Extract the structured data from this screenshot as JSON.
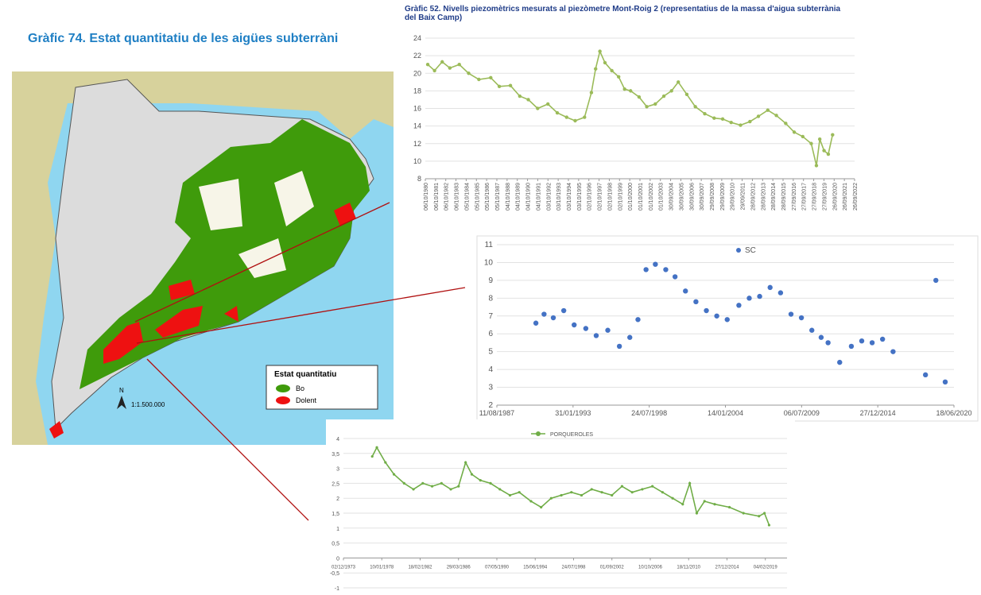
{
  "page_title": "Gràfic 74. Estat quantitatiu de les aigües subterràni",
  "map": {
    "legend_title": "Estat quantitatiu",
    "legend_items": [
      {
        "label": "Bo",
        "color": "#3f9b0b"
      },
      {
        "label": "Dolent",
        "color": "#ee1111"
      }
    ],
    "north": "N",
    "scale": "1:1.500.000"
  },
  "chart_data": [
    {
      "type": "line",
      "title": "Gràfic 52. Nivells piezomètrics mesurats al piezòmetre Mont-Roig 2 (representatius de la massa d'aigua subterrània del Baix Camp)",
      "x": [
        "1981-01",
        "1981-09",
        "1982-06",
        "1983-03",
        "1984-02",
        "1985-01",
        "1986-01",
        "1987-03",
        "1988-01",
        "1989-02",
        "1990-01",
        "1990-11",
        "1991-10",
        "1992-10",
        "1993-09",
        "1994-08",
        "1995-06",
        "1996-05",
        "1997-01",
        "1997-06",
        "1997-11",
        "1998-05",
        "1999-01",
        "1999-09",
        "2000-04",
        "2000-11",
        "2001-09",
        "2002-06",
        "2003-04",
        "2004-02",
        "2004-11",
        "2005-07",
        "2006-05",
        "2007-03",
        "2008-02",
        "2009-01",
        "2009-11",
        "2010-09",
        "2011-08",
        "2012-07",
        "2013-05",
        "2014-04",
        "2015-02",
        "2016-01",
        "2016-11",
        "2017-09",
        "2018-07",
        "2019-01",
        "2019-05",
        "2019-10",
        "2020-03",
        "2020-08"
      ],
      "series": [
        {
          "name": "Mont-Roig 2",
          "color": "#9bbb59",
          "values": [
            21,
            20.3,
            21.3,
            20.6,
            21,
            20,
            19.3,
            19.5,
            18.5,
            18.6,
            17.4,
            17,
            16,
            16.5,
            15.5,
            15,
            14.6,
            15,
            17.8,
            20.5,
            22.5,
            21.2,
            20.3,
            19.6,
            18.2,
            18,
            17.3,
            16.2,
            16.5,
            17.4,
            18,
            19,
            17.6,
            16.2,
            15.4,
            14.9,
            14.8,
            14.4,
            14.1,
            14.5,
            15.1,
            15.8,
            15.2,
            14.3,
            13.3,
            12.8,
            12,
            9.5,
            12.5,
            11.2,
            10.8,
            13
          ]
        }
      ],
      "ylim": [
        8,
        24
      ],
      "yticks": [
        8,
        10,
        12,
        14,
        16,
        18,
        20,
        22,
        24
      ],
      "grid": true,
      "xlim": [
        "1980-10-06",
        "2022-09-26"
      ],
      "xticks": [
        {
          "value": "1980-10-06",
          "label": "06/10/1980"
        },
        {
          "value": "1981-10-06",
          "label": "06/10/1981"
        },
        {
          "value": "1982-10-06",
          "label": "06/10/1982"
        },
        {
          "value": "1983-10-06",
          "label": "06/10/1983"
        },
        {
          "value": "1984-10-05",
          "label": "05/10/1984"
        },
        {
          "value": "1985-10-05",
          "label": "05/10/1985"
        },
        {
          "value": "1986-10-05",
          "label": "05/10/1986"
        },
        {
          "value": "1987-10-05",
          "label": "05/10/1987"
        },
        {
          "value": "1988-10-04",
          "label": "04/10/1988"
        },
        {
          "value": "1989-10-04",
          "label": "04/10/1989"
        },
        {
          "value": "1990-10-04",
          "label": "04/10/1990"
        },
        {
          "value": "1991-10-04",
          "label": "04/10/1991"
        },
        {
          "value": "1992-10-03",
          "label": "03/10/1992"
        },
        {
          "value": "1993-10-03",
          "label": "03/10/1993"
        },
        {
          "value": "1994-10-03",
          "label": "03/10/1994"
        },
        {
          "value": "1995-10-03",
          "label": "03/10/1995"
        },
        {
          "value": "1996-10-02",
          "label": "02/10/1996"
        },
        {
          "value": "1997-10-02",
          "label": "02/10/1997"
        },
        {
          "value": "1998-10-02",
          "label": "02/10/1998"
        },
        {
          "value": "1999-10-02",
          "label": "02/10/1999"
        },
        {
          "value": "2000-10-01",
          "label": "01/10/2000"
        },
        {
          "value": "2001-10-01",
          "label": "01/10/2001"
        },
        {
          "value": "2002-10-01",
          "label": "01/10/2002"
        },
        {
          "value": "2003-10-01",
          "label": "01/10/2003"
        },
        {
          "value": "2004-09-30",
          "label": "30/09/2004"
        },
        {
          "value": "2005-09-30",
          "label": "30/09/2005"
        },
        {
          "value": "2006-09-30",
          "label": "30/09/2006"
        },
        {
          "value": "2007-09-30",
          "label": "30/09/2007"
        },
        {
          "value": "2008-09-29",
          "label": "29/09/2008"
        },
        {
          "value": "2009-09-29",
          "label": "29/09/2009"
        },
        {
          "value": "2010-09-29",
          "label": "29/09/2010"
        },
        {
          "value": "2011-09-29",
          "label": "29/09/2011"
        },
        {
          "value": "2012-09-28",
          "label": "28/09/2012"
        },
        {
          "value": "2013-09-28",
          "label": "28/09/2013"
        },
        {
          "value": "2014-09-28",
          "label": "28/09/2014"
        },
        {
          "value": "2015-09-28",
          "label": "28/09/2015"
        },
        {
          "value": "2016-09-27",
          "label": "27/09/2016"
        },
        {
          "value": "2017-09-27",
          "label": "27/09/2017"
        },
        {
          "value": "2018-09-27",
          "label": "27/09/2018"
        },
        {
          "value": "2019-09-27",
          "label": "27/09/2019"
        },
        {
          "value": "2020-09-26",
          "label": "26/09/2020"
        },
        {
          "value": "2021-09-26",
          "label": "26/09/2021"
        },
        {
          "value": "2022-09-26",
          "label": "26/09/2022"
        }
      ]
    },
    {
      "type": "scatter",
      "x": [
        "1990-06",
        "1991-01",
        "1991-09",
        "1992-06",
        "1993-03",
        "1994-01",
        "1994-10",
        "1995-08",
        "1996-06",
        "1997-03",
        "1997-10",
        "1998-05",
        "1999-01",
        "1999-10",
        "2000-06",
        "2001-03",
        "2001-12",
        "2002-09",
        "2003-06",
        "2004-03",
        "2005-01",
        "2005-10",
        "2006-07",
        "2007-04",
        "2008-01",
        "2008-10",
        "2009-07",
        "2010-04",
        "2010-12",
        "2011-06",
        "2012-04",
        "2013-02",
        "2013-11",
        "2014-08",
        "2015-05",
        "2016-02",
        "2018-06",
        "2019-03",
        "2019-11"
      ],
      "series": [
        {
          "name": "SC",
          "color": "#4472c4",
          "values": [
            6.6,
            7.1,
            6.9,
            7.3,
            6.5,
            6.3,
            5.9,
            6.2,
            5.3,
            5.8,
            6.8,
            9.6,
            9.9,
            9.6,
            9.2,
            8.4,
            7.8,
            7.3,
            7,
            6.8,
            7.6,
            8,
            8.1,
            8.6,
            8.3,
            7.1,
            6.9,
            6.2,
            5.8,
            5.5,
            4.4,
            5.3,
            5.6,
            5.5,
            5.7,
            5,
            3.7,
            9,
            3.3
          ]
        }
      ],
      "ylim": [
        2,
        11
      ],
      "yticks": [
        2,
        3,
        4,
        5,
        6,
        7,
        8,
        9,
        10,
        11
      ],
      "grid": true,
      "xlim": [
        "1987-08-11",
        "2020-06-18"
      ],
      "xticks": [
        {
          "value": "1987-08-11",
          "label": "11/08/1987"
        },
        {
          "value": "1993-01-31",
          "label": "31/01/1993"
        },
        {
          "value": "1998-07-24",
          "label": "24/07/1998"
        },
        {
          "value": "2004-01-14",
          "label": "14/01/2004"
        },
        {
          "value": "2009-07-06",
          "label": "06/07/2009"
        },
        {
          "value": "2014-12-27",
          "label": "27/12/2014"
        },
        {
          "value": "2020-06-18",
          "label": "18/06/2020"
        }
      ]
    },
    {
      "type": "line",
      "x": [
        "1977-01",
        "1977-07",
        "1978-06",
        "1979-05",
        "1980-06",
        "1981-06",
        "1982-06",
        "1983-06",
        "1984-06",
        "1985-06",
        "1986-04",
        "1987-01",
        "1987-09",
        "1988-08",
        "1989-09",
        "1990-09",
        "1991-10",
        "1992-10",
        "1994-01",
        "1995-02",
        "1996-03",
        "1997-04",
        "1998-05",
        "1999-06",
        "2000-07",
        "2001-08",
        "2002-09",
        "2003-10",
        "2004-11",
        "2005-12",
        "2007-01",
        "2008-02",
        "2009-03",
        "2010-04",
        "2011-01",
        "2011-10",
        "2012-08",
        "2013-09",
        "2015-04",
        "2016-10",
        "2018-06",
        "2019-01",
        "2019-07"
      ],
      "series": [
        {
          "name": "PORQUEROLES",
          "color": "#70ad47",
          "values": [
            3.4,
            3.7,
            3.2,
            2.8,
            2.5,
            2.3,
            2.5,
            2.4,
            2.5,
            2.3,
            2.4,
            3.2,
            2.8,
            2.6,
            2.5,
            2.3,
            2.1,
            2.2,
            1.9,
            1.7,
            2,
            2.1,
            2.2,
            2.1,
            2.3,
            2.2,
            2.1,
            2.4,
            2.2,
            2.3,
            2.4,
            2.2,
            2,
            1.8,
            2.5,
            1.5,
            1.9,
            1.8,
            1.7,
            1.5,
            1.4,
            1.5,
            1.1
          ]
        }
      ],
      "ylim": [
        -1,
        4
      ],
      "yticks": [
        4,
        {
          "value": 3.5,
          "label": "3,5"
        },
        3,
        {
          "value": 2.5,
          "label": "2,5"
        },
        2,
        {
          "value": 1.5,
          "label": "1,5"
        },
        1,
        {
          "value": 0.5,
          "label": "0,5"
        },
        0,
        {
          "value": -0.5,
          "label": "-0,5"
        },
        -1
      ],
      "grid": true,
      "xlim": [
        "1973-12-02",
        "2021-06-01"
      ],
      "xticks": [
        {
          "value": "1973-12-02",
          "label": "02/12/1973"
        },
        {
          "value": "1978-01-10",
          "label": "10/01/1978"
        },
        {
          "value": "1982-02-18",
          "label": "18/02/1982"
        },
        {
          "value": "1986-03-29",
          "label": "29/03/1986"
        },
        {
          "value": "1990-05-07",
          "label": "07/05/1990"
        },
        {
          "value": "1994-06-15",
          "label": "15/06/1994"
        },
        {
          "value": "1998-07-24",
          "label": "24/07/1998"
        },
        {
          "value": "2002-09-01",
          "label": "01/09/2002"
        },
        {
          "value": "2006-10-10",
          "label": "10/10/2006"
        },
        {
          "value": "2010-11-18",
          "label": "18/11/2010"
        },
        {
          "value": "2014-12-27",
          "label": "27/12/2014"
        },
        {
          "value": "2019-02-04",
          "label": "04/02/2019"
        }
      ]
    }
  ]
}
